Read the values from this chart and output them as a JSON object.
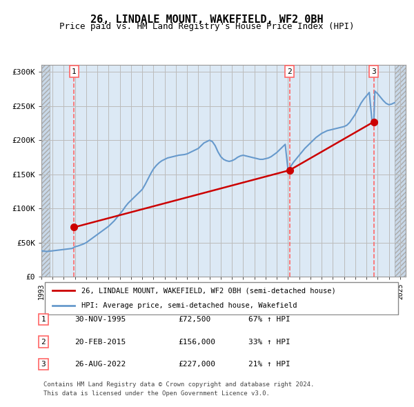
{
  "title": "26, LINDALE MOUNT, WAKEFIELD, WF2 0BH",
  "subtitle": "Price paid vs. HM Land Registry's House Price Index (HPI)",
  "legend_line1": "26, LINDALE MOUNT, WAKEFIELD, WF2 0BH (semi-detached house)",
  "legend_line2": "HPI: Average price, semi-detached house, Wakefield",
  "footer1": "Contains HM Land Registry data © Crown copyright and database right 2024.",
  "footer2": "This data is licensed under the Open Government Licence v3.0.",
  "transactions": [
    {
      "num": 1,
      "date": "30-NOV-1995",
      "price": 72500,
      "pct": "67%",
      "year": 1995.92
    },
    {
      "num": 2,
      "date": "20-FEB-2015",
      "price": 156000,
      "pct": "33%",
      "year": 2015.13
    },
    {
      "num": 3,
      "date": "26-AUG-2022",
      "price": 227000,
      "pct": "21%",
      "year": 2022.65
    }
  ],
  "hpi_color": "#6699cc",
  "sold_color": "#cc0000",
  "dashed_color": "#ff6666",
  "background_plot": "#dce9f5",
  "background_hatch": "#c8d8e8",
  "ylim": [
    0,
    310000
  ],
  "xlim_start": 1993,
  "xlim_end": 2025.5,
  "yticks": [
    0,
    50000,
    100000,
    150000,
    200000,
    250000,
    300000
  ],
  "ytick_labels": [
    "£0",
    "£50K",
    "£100K",
    "£150K",
    "£200K",
    "£250K",
    "£300K"
  ],
  "hpi_data_x": [
    1993.0,
    1993.25,
    1993.5,
    1993.75,
    1994.0,
    1994.25,
    1994.5,
    1994.75,
    1995.0,
    1995.25,
    1995.5,
    1995.75,
    1995.92,
    1996.0,
    1996.25,
    1996.5,
    1996.75,
    1997.0,
    1997.25,
    1997.5,
    1997.75,
    1998.0,
    1998.25,
    1998.5,
    1998.75,
    1999.0,
    1999.25,
    1999.5,
    1999.75,
    2000.0,
    2000.25,
    2000.5,
    2000.75,
    2001.0,
    2001.25,
    2001.5,
    2001.75,
    2002.0,
    2002.25,
    2002.5,
    2002.75,
    2003.0,
    2003.25,
    2003.5,
    2003.75,
    2004.0,
    2004.25,
    2004.5,
    2004.75,
    2005.0,
    2005.25,
    2005.5,
    2005.75,
    2006.0,
    2006.25,
    2006.5,
    2006.75,
    2007.0,
    2007.25,
    2007.5,
    2007.75,
    2008.0,
    2008.25,
    2008.5,
    2008.75,
    2009.0,
    2009.25,
    2009.5,
    2009.75,
    2010.0,
    2010.25,
    2010.5,
    2010.75,
    2011.0,
    2011.25,
    2011.5,
    2011.75,
    2012.0,
    2012.25,
    2012.5,
    2012.75,
    2013.0,
    2013.25,
    2013.5,
    2013.75,
    2014.0,
    2014.25,
    2014.5,
    2014.75,
    2015.0,
    2015.13,
    2015.25,
    2015.5,
    2015.75,
    2016.0,
    2016.25,
    2016.5,
    2016.75,
    2017.0,
    2017.25,
    2017.5,
    2017.75,
    2018.0,
    2018.25,
    2018.5,
    2018.75,
    2019.0,
    2019.25,
    2019.5,
    2019.75,
    2020.0,
    2020.25,
    2020.5,
    2020.75,
    2021.0,
    2021.25,
    2021.5,
    2021.75,
    2022.0,
    2022.25,
    2022.5,
    2022.65,
    2022.75,
    2023.0,
    2023.25,
    2023.5,
    2023.75,
    2024.0,
    2024.25,
    2024.5
  ],
  "hpi_data_y": [
    38000,
    37500,
    37000,
    37500,
    38000,
    38500,
    39000,
    39500,
    40000,
    40500,
    41000,
    41500,
    43200,
    44000,
    45000,
    46500,
    48000,
    50000,
    53000,
    56000,
    59000,
    62000,
    65000,
    68000,
    71000,
    74000,
    78000,
    82000,
    87000,
    92000,
    97000,
    103000,
    108000,
    112000,
    116000,
    120000,
    124000,
    128000,
    135000,
    143000,
    151000,
    158000,
    163000,
    167000,
    170000,
    172000,
    174000,
    175000,
    176000,
    177000,
    178000,
    178500,
    179000,
    180000,
    182000,
    184000,
    186000,
    188000,
    192000,
    196000,
    198000,
    200000,
    198000,
    192000,
    183000,
    176000,
    172000,
    170000,
    169000,
    170000,
    172000,
    175000,
    177000,
    178000,
    177000,
    176000,
    175000,
    174000,
    173000,
    172000,
    172000,
    173000,
    174000,
    176000,
    179000,
    182000,
    186000,
    190000,
    194000,
    156000,
    158000,
    162000,
    168000,
    173000,
    178000,
    183000,
    188000,
    192000,
    196000,
    200000,
    204000,
    207000,
    210000,
    212000,
    214000,
    215000,
    216000,
    217000,
    218000,
    219000,
    220000,
    222000,
    226000,
    232000,
    238000,
    246000,
    254000,
    260000,
    265000,
    270000,
    227000,
    225000,
    272000,
    268000,
    263000,
    258000,
    254000,
    252000,
    253000,
    255000
  ],
  "sold_line_x": [
    1995.92,
    2015.13,
    2022.65
  ],
  "sold_line_y": [
    72500,
    156000,
    227000
  ],
  "xtick_years": [
    1993,
    1994,
    1995,
    1996,
    1997,
    1998,
    1999,
    2000,
    2001,
    2002,
    2003,
    2004,
    2005,
    2006,
    2007,
    2008,
    2009,
    2010,
    2011,
    2012,
    2013,
    2014,
    2015,
    2016,
    2017,
    2018,
    2019,
    2020,
    2021,
    2022,
    2023,
    2024,
    2025
  ]
}
